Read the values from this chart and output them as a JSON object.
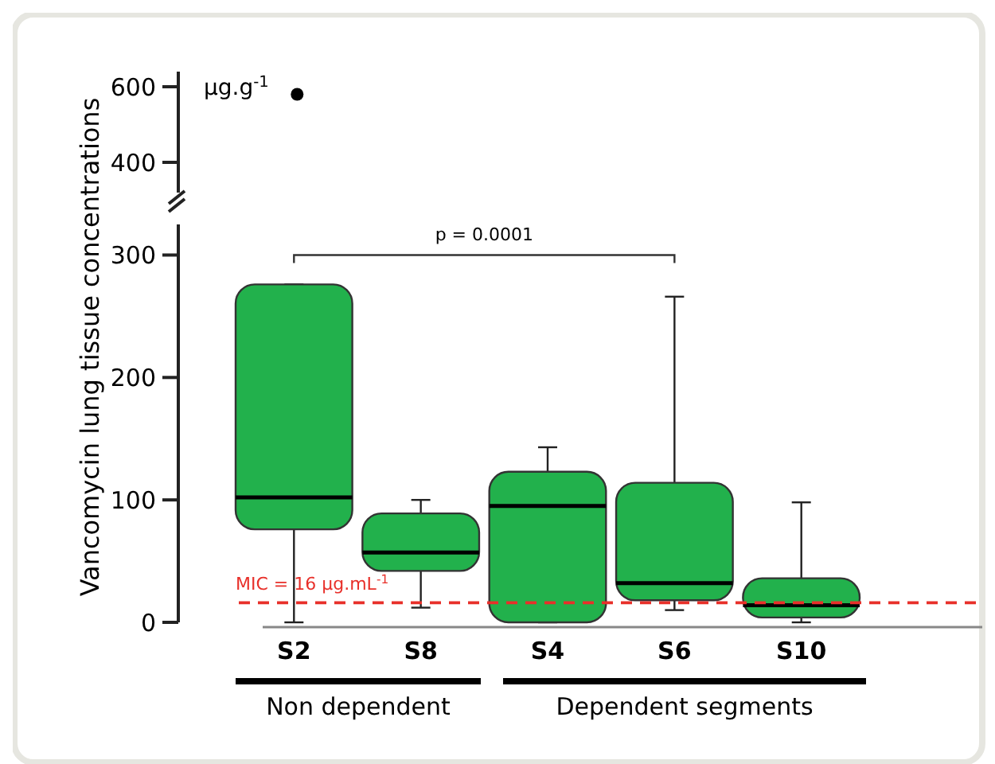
{
  "chart_data": [
    {
      "type": "scatter",
      "categories": [
        "S2"
      ],
      "series": [
        {
          "x": [
            "S2"
          ],
          "values": [
            580
          ],
          "color": "#000000"
        }
      ],
      "ylim": [
        320,
        640
      ],
      "yticks": [
        400,
        600
      ],
      "tick_labels": "y",
      "marker": "circle",
      "annotations": [
        "µg.g$^{-1}$"
      ]
    },
    {
      "type": "box",
      "categories": [
        "S2",
        "S8",
        "S4",
        "S6",
        "S10"
      ],
      "ylabel": "Vancomycin lung tissue concentrations",
      "ylim": [
        0,
        325
      ],
      "yticks": [
        0,
        100,
        200,
        300
      ],
      "series": [
        {
          "color": "#22b14c",
          "boxes": [
            {
              "low": 0,
              "q1": 76,
              "median": 102,
              "q3": 276,
              "high": 276
            },
            {
              "low": 12,
              "q1": 42,
              "median": 57,
              "q3": 89,
              "high": 100
            },
            {
              "low": 0,
              "q1": 0,
              "median": 95,
              "q3": 123,
              "high": 143
            },
            {
              "low": 10,
              "q1": 18,
              "median": 32,
              "q3": 114,
              "high": 266
            },
            {
              "low": 0,
              "q1": 4,
              "median": 14,
              "q3": 36,
              "high": 98
            }
          ]
        }
      ],
      "ref_lines": [
        {
          "axis": "y",
          "value": 16,
          "label": "MIC = 16 µg.mL$^{-1}$",
          "color": "#e8302a",
          "line_style": "dashed"
        }
      ],
      "annotations": [
        "p = 0.0001",
        "Non dependent",
        "Dependent segments"
      ]
    }
  ]
}
